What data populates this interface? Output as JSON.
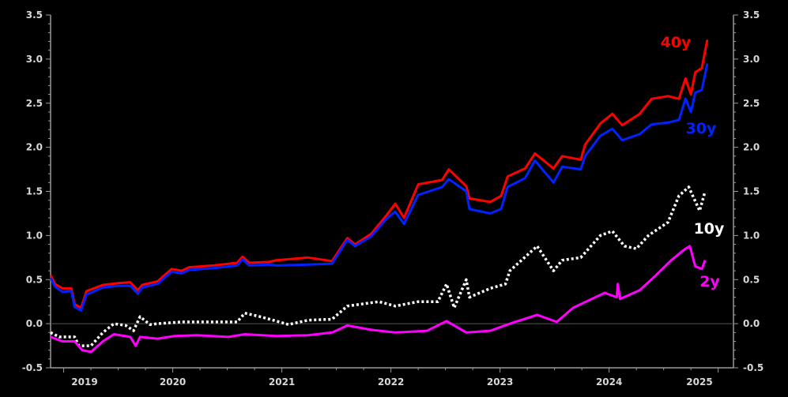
{
  "chart_data": {
    "type": "line",
    "title": "",
    "xlabel": "",
    "ylabel": "",
    "x_unit": "decimal year",
    "xlim": [
      2018.88,
      2025.14
    ],
    "ylim": [
      -0.5,
      3.5
    ],
    "y_ticks": [
      "3.5",
      "3.0",
      "2.5",
      "2.0",
      "1.5",
      "1.0",
      "0.5",
      "0.0",
      "-0.5"
    ],
    "x_ticks": [
      "2019",
      "2020",
      "2021",
      "2022",
      "2023",
      "2024",
      "2025"
    ],
    "axes": "left and right, mirrored",
    "grid": false,
    "zero_line": true,
    "legend": "inline labels at right end of each series",
    "series": [
      {
        "name": "40y",
        "color": "#ff0000",
        "style": "solid",
        "points": [
          [
            2018.88,
            0.55
          ],
          [
            2018.92,
            0.45
          ],
          [
            2018.99,
            0.4
          ],
          [
            2019.07,
            0.4
          ],
          [
            2019.1,
            0.22
          ],
          [
            2019.16,
            0.18
          ],
          [
            2019.21,
            0.37
          ],
          [
            2019.36,
            0.44
          ],
          [
            2019.5,
            0.46
          ],
          [
            2019.61,
            0.47
          ],
          [
            2019.68,
            0.38
          ],
          [
            2019.72,
            0.44
          ],
          [
            2019.86,
            0.48
          ],
          [
            2019.99,
            0.62
          ],
          [
            2020.08,
            0.6
          ],
          [
            2020.15,
            0.64
          ],
          [
            2020.37,
            0.66
          ],
          [
            2020.59,
            0.69
          ],
          [
            2020.64,
            0.76
          ],
          [
            2020.7,
            0.69
          ],
          [
            2020.88,
            0.7
          ],
          [
            2020.95,
            0.72
          ],
          [
            2021.24,
            0.75
          ],
          [
            2021.46,
            0.71
          ],
          [
            2021.6,
            0.97
          ],
          [
            2021.67,
            0.9
          ],
          [
            2021.82,
            1.02
          ],
          [
            2021.96,
            1.23
          ],
          [
            2022.04,
            1.36
          ],
          [
            2022.12,
            1.2
          ],
          [
            2022.25,
            1.58
          ],
          [
            2022.47,
            1.63
          ],
          [
            2022.53,
            1.75
          ],
          [
            2022.69,
            1.56
          ],
          [
            2022.72,
            1.42
          ],
          [
            2022.91,
            1.38
          ],
          [
            2023.01,
            1.45
          ],
          [
            2023.07,
            1.67
          ],
          [
            2023.23,
            1.76
          ],
          [
            2023.32,
            1.93
          ],
          [
            2023.49,
            1.76
          ],
          [
            2023.57,
            1.9
          ],
          [
            2023.74,
            1.86
          ],
          [
            2023.78,
            2.03
          ],
          [
            2023.92,
            2.27
          ],
          [
            2024.03,
            2.38
          ],
          [
            2024.12,
            2.25
          ],
          [
            2024.28,
            2.38
          ],
          [
            2024.39,
            2.55
          ],
          [
            2024.54,
            2.58
          ],
          [
            2024.64,
            2.55
          ],
          [
            2024.7,
            2.78
          ],
          [
            2024.75,
            2.6
          ],
          [
            2024.79,
            2.85
          ],
          [
            2024.85,
            2.9
          ],
          [
            2024.9,
            3.22
          ]
        ]
      },
      {
        "name": "30y",
        "color": "#0022ff",
        "style": "solid",
        "points": [
          [
            2018.88,
            0.52
          ],
          [
            2018.92,
            0.42
          ],
          [
            2018.99,
            0.36
          ],
          [
            2019.07,
            0.37
          ],
          [
            2019.1,
            0.19
          ],
          [
            2019.16,
            0.15
          ],
          [
            2019.21,
            0.33
          ],
          [
            2019.36,
            0.41
          ],
          [
            2019.5,
            0.43
          ],
          [
            2019.61,
            0.43
          ],
          [
            2019.68,
            0.34
          ],
          [
            2019.72,
            0.41
          ],
          [
            2019.86,
            0.45
          ],
          [
            2019.99,
            0.59
          ],
          [
            2020.08,
            0.57
          ],
          [
            2020.15,
            0.61
          ],
          [
            2020.37,
            0.63
          ],
          [
            2020.59,
            0.66
          ],
          [
            2020.64,
            0.73
          ],
          [
            2020.7,
            0.66
          ],
          [
            2020.88,
            0.67
          ],
          [
            2020.95,
            0.66
          ],
          [
            2021.24,
            0.67
          ],
          [
            2021.46,
            0.68
          ],
          [
            2021.6,
            0.95
          ],
          [
            2021.67,
            0.88
          ],
          [
            2021.82,
            0.99
          ],
          [
            2021.96,
            1.19
          ],
          [
            2022.04,
            1.27
          ],
          [
            2022.12,
            1.13
          ],
          [
            2022.25,
            1.46
          ],
          [
            2022.47,
            1.55
          ],
          [
            2022.53,
            1.64
          ],
          [
            2022.69,
            1.5
          ],
          [
            2022.72,
            1.3
          ],
          [
            2022.91,
            1.25
          ],
          [
            2023.01,
            1.3
          ],
          [
            2023.07,
            1.55
          ],
          [
            2023.23,
            1.65
          ],
          [
            2023.32,
            1.85
          ],
          [
            2023.49,
            1.6
          ],
          [
            2023.57,
            1.78
          ],
          [
            2023.74,
            1.75
          ],
          [
            2023.78,
            1.9
          ],
          [
            2023.92,
            2.13
          ],
          [
            2024.03,
            2.21
          ],
          [
            2024.12,
            2.08
          ],
          [
            2024.28,
            2.15
          ],
          [
            2024.39,
            2.26
          ],
          [
            2024.54,
            2.28
          ],
          [
            2024.64,
            2.31
          ],
          [
            2024.7,
            2.55
          ],
          [
            2024.75,
            2.4
          ],
          [
            2024.79,
            2.62
          ],
          [
            2024.85,
            2.65
          ],
          [
            2024.9,
            2.95
          ]
        ]
      },
      {
        "name": "10y",
        "color": "#ffffff",
        "style": "dotted",
        "points": [
          [
            2018.88,
            -0.1
          ],
          [
            2018.96,
            -0.15
          ],
          [
            2019.1,
            -0.15
          ],
          [
            2019.14,
            -0.25
          ],
          [
            2019.25,
            -0.25
          ],
          [
            2019.36,
            -0.1
          ],
          [
            2019.46,
            0.0
          ],
          [
            2019.57,
            -0.02
          ],
          [
            2019.64,
            -0.08
          ],
          [
            2019.7,
            0.08
          ],
          [
            2019.79,
            -0.01
          ],
          [
            2019.86,
            0.0
          ],
          [
            2020.08,
            0.02
          ],
          [
            2020.3,
            0.02
          ],
          [
            2020.59,
            0.02
          ],
          [
            2020.66,
            0.12
          ],
          [
            2020.8,
            0.08
          ],
          [
            2020.95,
            0.03
          ],
          [
            2021.06,
            -0.01
          ],
          [
            2021.24,
            0.04
          ],
          [
            2021.46,
            0.05
          ],
          [
            2021.6,
            0.2
          ],
          [
            2021.89,
            0.25
          ],
          [
            2022.04,
            0.2
          ],
          [
            2022.25,
            0.25
          ],
          [
            2022.43,
            0.25
          ],
          [
            2022.51,
            0.45
          ],
          [
            2022.58,
            0.18
          ],
          [
            2022.69,
            0.5
          ],
          [
            2022.72,
            0.3
          ],
          [
            2022.91,
            0.4
          ],
          [
            2023.05,
            0.45
          ],
          [
            2023.09,
            0.6
          ],
          [
            2023.34,
            0.88
          ],
          [
            2023.49,
            0.6
          ],
          [
            2023.57,
            0.72
          ],
          [
            2023.74,
            0.75
          ],
          [
            2023.92,
            1.0
          ],
          [
            2024.03,
            1.05
          ],
          [
            2024.14,
            0.88
          ],
          [
            2024.25,
            0.85
          ],
          [
            2024.36,
            1.0
          ],
          [
            2024.54,
            1.15
          ],
          [
            2024.64,
            1.45
          ],
          [
            2024.73,
            1.55
          ],
          [
            2024.83,
            1.28
          ],
          [
            2024.88,
            1.5
          ]
        ]
      },
      {
        "name": "2y",
        "color": "#ff00ff",
        "style": "solid",
        "points": [
          [
            2018.88,
            -0.15
          ],
          [
            2018.99,
            -0.2
          ],
          [
            2019.1,
            -0.2
          ],
          [
            2019.17,
            -0.3
          ],
          [
            2019.25,
            -0.32
          ],
          [
            2019.36,
            -0.2
          ],
          [
            2019.46,
            -0.12
          ],
          [
            2019.61,
            -0.15
          ],
          [
            2019.66,
            -0.25
          ],
          [
            2019.7,
            -0.15
          ],
          [
            2019.86,
            -0.17
          ],
          [
            2020.01,
            -0.14
          ],
          [
            2020.22,
            -0.13
          ],
          [
            2020.51,
            -0.15
          ],
          [
            2020.66,
            -0.12
          ],
          [
            2020.95,
            -0.14
          ],
          [
            2021.24,
            -0.13
          ],
          [
            2021.46,
            -0.1
          ],
          [
            2021.6,
            -0.02
          ],
          [
            2021.82,
            -0.07
          ],
          [
            2022.04,
            -0.1
          ],
          [
            2022.33,
            -0.08
          ],
          [
            2022.51,
            0.03
          ],
          [
            2022.69,
            -0.1
          ],
          [
            2022.91,
            -0.08
          ],
          [
            2023.09,
            0.0
          ],
          [
            2023.34,
            0.1
          ],
          [
            2023.52,
            0.02
          ],
          [
            2023.67,
            0.18
          ],
          [
            2023.96,
            0.35
          ],
          [
            2024.07,
            0.3
          ],
          [
            2024.08,
            0.45
          ],
          [
            2024.1,
            0.28
          ],
          [
            2024.28,
            0.38
          ],
          [
            2024.43,
            0.55
          ],
          [
            2024.57,
            0.72
          ],
          [
            2024.7,
            0.85
          ],
          [
            2024.74,
            0.88
          ],
          [
            2024.79,
            0.65
          ],
          [
            2024.85,
            0.62
          ],
          [
            2024.88,
            0.72
          ]
        ]
      }
    ]
  }
}
